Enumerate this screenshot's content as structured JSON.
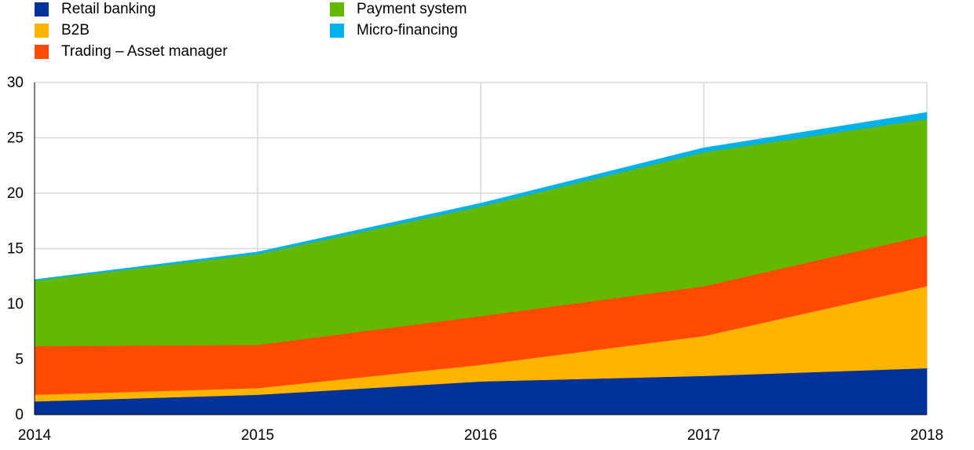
{
  "chart_data": {
    "type": "area",
    "stacked": true,
    "title": "",
    "xlabel": "",
    "ylabel": "",
    "x": [
      "2014",
      "2015",
      "2016",
      "2017",
      "2018"
    ],
    "ylim": [
      0,
      30
    ],
    "yticks": [
      "0",
      "5",
      "10",
      "15",
      "20",
      "25",
      "30"
    ],
    "grid": true,
    "legend_position": "top-left",
    "series": [
      {
        "name": "Retail banking",
        "color": "#003299",
        "values": [
          1.2,
          1.8,
          3.0,
          3.5,
          4.2
        ]
      },
      {
        "name": "B2B",
        "color": "#FFB400",
        "values": [
          0.6,
          0.6,
          1.5,
          3.6,
          7.4
        ]
      },
      {
        "name": "Trading – Asset manager",
        "color": "#FF4B00",
        "values": [
          4.4,
          3.9,
          4.4,
          4.5,
          4.6
        ]
      },
      {
        "name": "Payment system",
        "color": "#65B800",
        "values": [
          5.9,
          8.2,
          9.9,
          12.1,
          10.5
        ]
      },
      {
        "name": "Micro-financing",
        "color": "#00B1EA",
        "values": [
          0.1,
          0.2,
          0.3,
          0.4,
          0.6
        ]
      }
    ]
  }
}
